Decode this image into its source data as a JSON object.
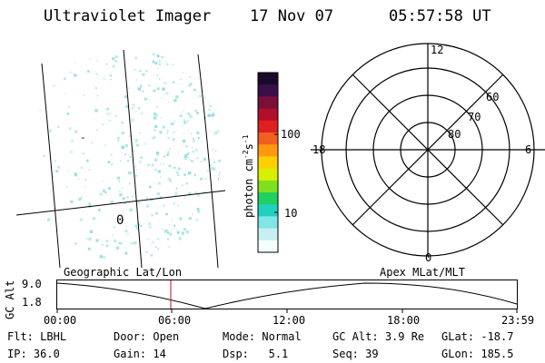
{
  "header": {
    "instrument": "Ultraviolet Imager",
    "date": "17 Nov 07",
    "time": "05:57:58 UT"
  },
  "colorbar": {
    "label": "photon cm",
    "label_sup": "-2",
    "label_s": "s",
    "label_sup2": "-1",
    "ticks": [
      "100",
      "10"
    ],
    "colors": [
      "#1a0a2a",
      "#3a0f4a",
      "#7a0f3a",
      "#b0102a",
      "#e02020",
      "#f06020",
      "#ff9a10",
      "#ffd000",
      "#d8f000",
      "#80e020",
      "#20d060",
      "#20d0c0",
      "#80e6e6",
      "#c8f0f0",
      "#f4ffff"
    ]
  },
  "left_image": {
    "label_a": "-",
    "label_b": "0",
    "speckle_color": "#8fdcdc"
  },
  "polar_plot": {
    "mlt_labels": {
      "top": "12",
      "left": "18",
      "right": "6",
      "bottom": "0"
    },
    "mlat_labels": [
      "60",
      "70",
      "80"
    ]
  },
  "altitude_strip": {
    "left_title": "Geographic Lat/Lon",
    "right_title": "Apex MLat/MLT",
    "axis_label": "GC Alt",
    "y_ticks": [
      "9.0",
      "1.8"
    ],
    "time_ticks": [
      "00:00",
      "06:00",
      "12:00",
      "18:00",
      "23:59"
    ],
    "current_time_marker": "05:57:58"
  },
  "info_row1": [
    {
      "k": "Flt:",
      "v": "LBHL"
    },
    {
      "k": "Door:",
      "v": "Open"
    },
    {
      "k": "Mode:",
      "v": "Normal"
    },
    {
      "k": "GC Alt:",
      "v": "3.9 Re"
    },
    {
      "k": "GLat:",
      "v": "-18.7"
    }
  ],
  "info_row2": [
    {
      "k": "IP:",
      "v": "36.0"
    },
    {
      "k": "Gain:",
      "v": "14"
    },
    {
      "k": "Dsp:",
      "v": "5.1"
    },
    {
      "k": "Seq:",
      "v": "39"
    },
    {
      "k": "GLon:",
      "v": "185.5"
    }
  ]
}
